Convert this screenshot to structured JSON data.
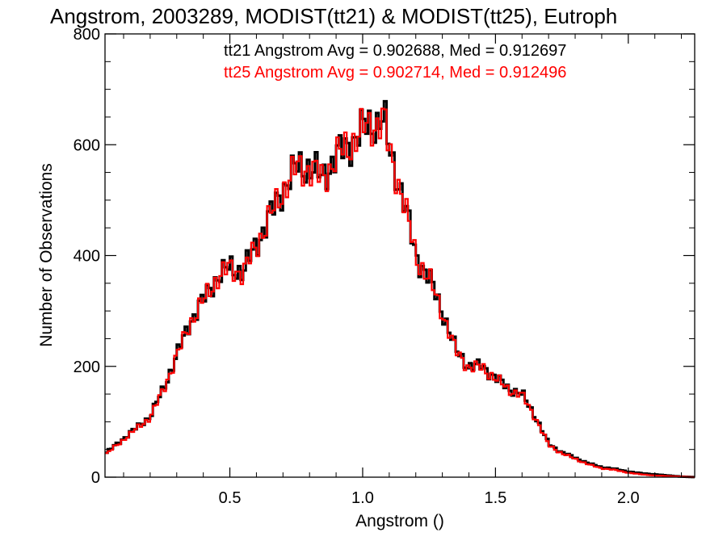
{
  "chart_data": {
    "type": "histogram",
    "title": "Angstrom, 2003289, MODIST(tt21) & MODIST(tt25), Eutroph",
    "xlabel": "Angstrom ()",
    "ylabel": "Number of Observations",
    "xlim": [
      0.03,
      2.25
    ],
    "ylim": [
      0,
      800
    ],
    "xticks": [
      0.5,
      1.0,
      1.5,
      2.0
    ],
    "xtick_labels": [
      "0.5",
      "1.0",
      "1.5",
      "2.0"
    ],
    "yticks": [
      0,
      200,
      400,
      600,
      800
    ],
    "ytick_labels": [
      "0",
      "200",
      "400",
      "600",
      "800"
    ],
    "grid": false,
    "legend_placement": "top",
    "annotations": [
      {
        "text": "tt21 Angstrom Avg = 0.902688, Med = 0.912697",
        "color": "#000000"
      },
      {
        "text": "tt25 Angstrom Avg = 0.902714, Med = 0.912496",
        "color": "#ff0000"
      }
    ],
    "bin_width": 0.01,
    "x": [
      0.0,
      0.1,
      0.2,
      0.25,
      0.3,
      0.35,
      0.4,
      0.45,
      0.5,
      0.55,
      0.6,
      0.65,
      0.7,
      0.75,
      0.8,
      0.85,
      0.9,
      0.95,
      1.0,
      1.05,
      1.08,
      1.1,
      1.15,
      1.2,
      1.25,
      1.3,
      1.35,
      1.4,
      1.45,
      1.5,
      1.55,
      1.6,
      1.65,
      1.7,
      1.75,
      1.8,
      1.85,
      1.9,
      1.95,
      2.0,
      2.05,
      2.1,
      2.15,
      2.2,
      2.25
    ],
    "series": [
      {
        "color": "#000000",
        "values": [
          30,
          70,
          110,
          160,
          220,
          280,
          320,
          360,
          380,
          370,
          420,
          470,
          520,
          560,
          560,
          540,
          580,
          600,
          630,
          640,
          650,
          590,
          510,
          400,
          360,
          300,
          230,
          200,
          200,
          180,
          160,
          150,
          110,
          60,
          45,
          35,
          25,
          18,
          15,
          10,
          7,
          5,
          3,
          1,
          0
        ]
      },
      {
        "color": "#ff0000",
        "values": [
          28,
          68,
          108,
          158,
          218,
          278,
          318,
          358,
          378,
          368,
          418,
          468,
          518,
          558,
          558,
          538,
          578,
          598,
          628,
          638,
          648,
          588,
          508,
          398,
          358,
          298,
          228,
          198,
          198,
          178,
          158,
          148,
          108,
          58,
          43,
          33,
          23,
          16,
          13,
          8,
          5,
          3,
          2,
          1,
          0
        ]
      }
    ]
  }
}
